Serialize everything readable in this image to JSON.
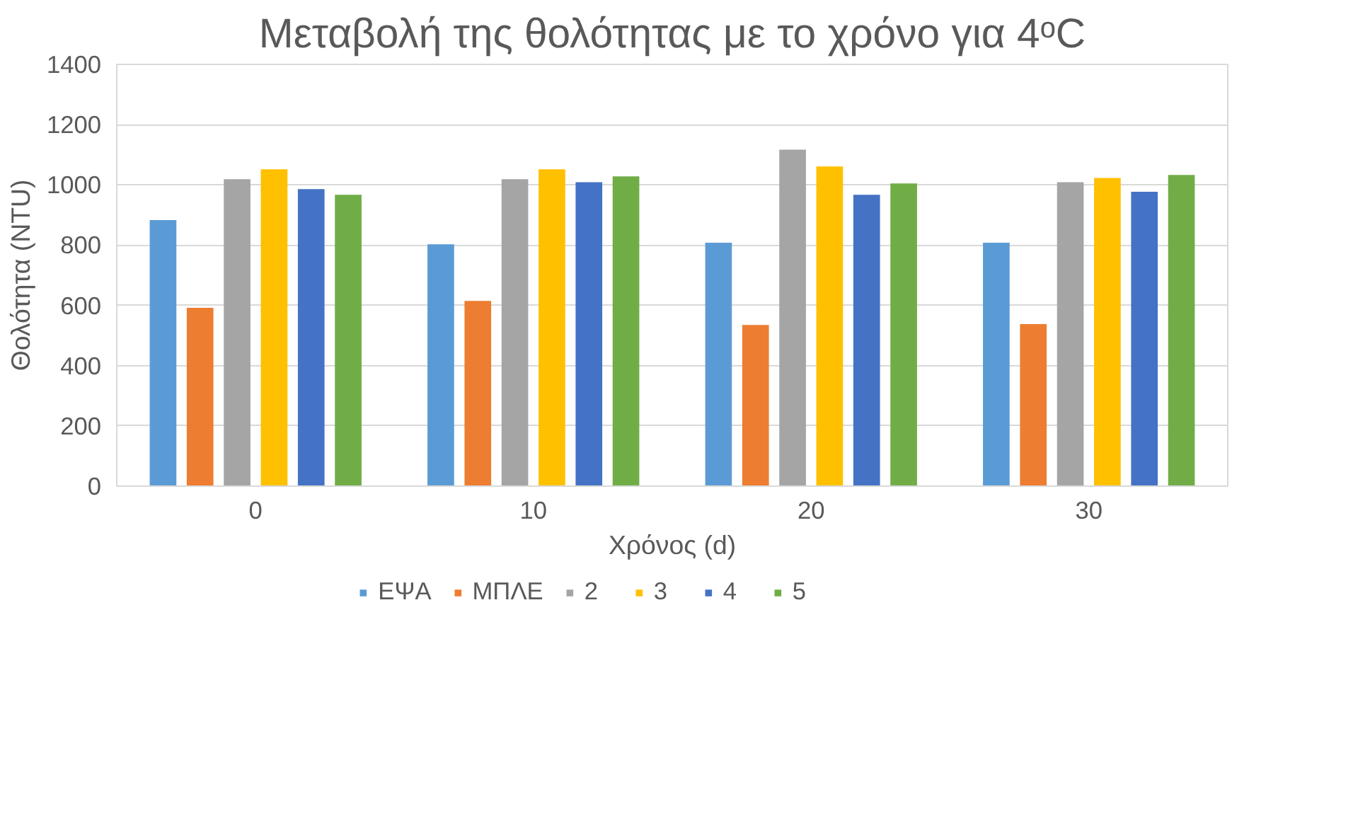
{
  "chart_data": {
    "type": "bar",
    "title": "Μεταβολή της θολότητας με το χρόνο για 4ᵒC",
    "xlabel": "Χρόνος (d)",
    "ylabel": "Θολότητα (NTU)",
    "categories": [
      "0",
      "10",
      "20",
      "30"
    ],
    "series": [
      {
        "name": "ΕΨΑ",
        "color": "#5b9bd5",
        "values": [
          883,
          803,
          808,
          808
        ]
      },
      {
        "name": "ΜΠΛΕ",
        "color": "#ed7d31",
        "values": [
          592,
          615,
          535,
          538
        ]
      },
      {
        "name": "2",
        "color": "#a5a5a5",
        "values": [
          1019,
          1019,
          1117,
          1009
        ]
      },
      {
        "name": "3",
        "color": "#ffc000",
        "values": [
          1052,
          1052,
          1061,
          1023
        ]
      },
      {
        "name": "4",
        "color": "#4472c4",
        "values": [
          986,
          1009,
          967,
          977
        ]
      },
      {
        "name": "5",
        "color": "#70ad47",
        "values": [
          967,
          1028,
          1005,
          1033
        ]
      }
    ],
    "ylim": [
      0,
      1400
    ],
    "yticks": [
      0,
      200,
      400,
      600,
      800,
      1000,
      1200,
      1400
    ],
    "grid": "y",
    "legend": "bottom"
  }
}
